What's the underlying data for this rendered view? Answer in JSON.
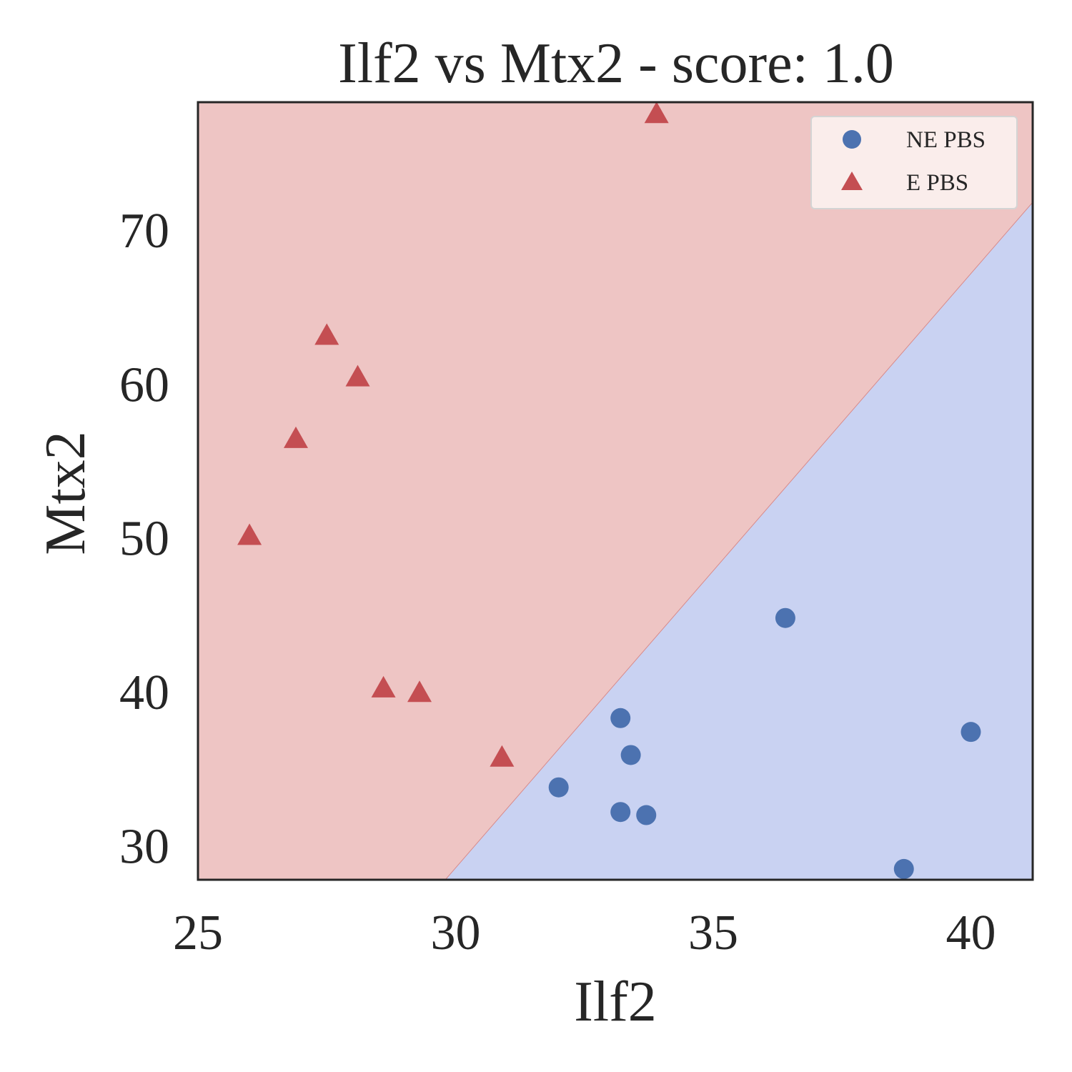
{
  "chart_data": {
    "type": "scatter",
    "title": "Ilf2 vs Mtx2 - score: 1.0",
    "xlabel": "Ilf2",
    "ylabel": "Mtx2",
    "xlim": [
      25,
      41.2
    ],
    "ylim": [
      27.8,
      78.3
    ],
    "xticks": [
      25,
      30,
      35,
      40
    ],
    "yticks": [
      30,
      40,
      50,
      60,
      70
    ],
    "grid": false,
    "legend_position": "top-right",
    "decision_boundary": {
      "points": [
        [
          29.8,
          27.8
        ],
        [
          41.2,
          71.8
        ]
      ],
      "region_below_class": "NE PBS",
      "region_above_class": "E PBS"
    },
    "colors": {
      "region_above": "#eec5c4",
      "region_below": "#c9d2f2",
      "boundary": "#d88a8a",
      "ne_pbs": "#4c72b0",
      "e_pbs": "#c44e52"
    },
    "series": [
      {
        "name": "NE PBS",
        "marker": "circle",
        "points": [
          [
            32.0,
            33.8
          ],
          [
            33.2,
            38.3
          ],
          [
            33.4,
            35.9
          ],
          [
            33.2,
            32.2
          ],
          [
            33.7,
            32.0
          ],
          [
            36.4,
            44.8
          ],
          [
            38.7,
            28.5
          ],
          [
            40.0,
            37.4
          ]
        ]
      },
      {
        "name": "E PBS",
        "marker": "triangle",
        "points": [
          [
            26.0,
            50.1
          ],
          [
            26.9,
            56.4
          ],
          [
            27.5,
            63.1
          ],
          [
            28.1,
            60.4
          ],
          [
            28.6,
            40.2
          ],
          [
            29.3,
            39.9
          ],
          [
            30.9,
            35.7
          ],
          [
            33.9,
            77.5
          ]
        ]
      }
    ]
  }
}
